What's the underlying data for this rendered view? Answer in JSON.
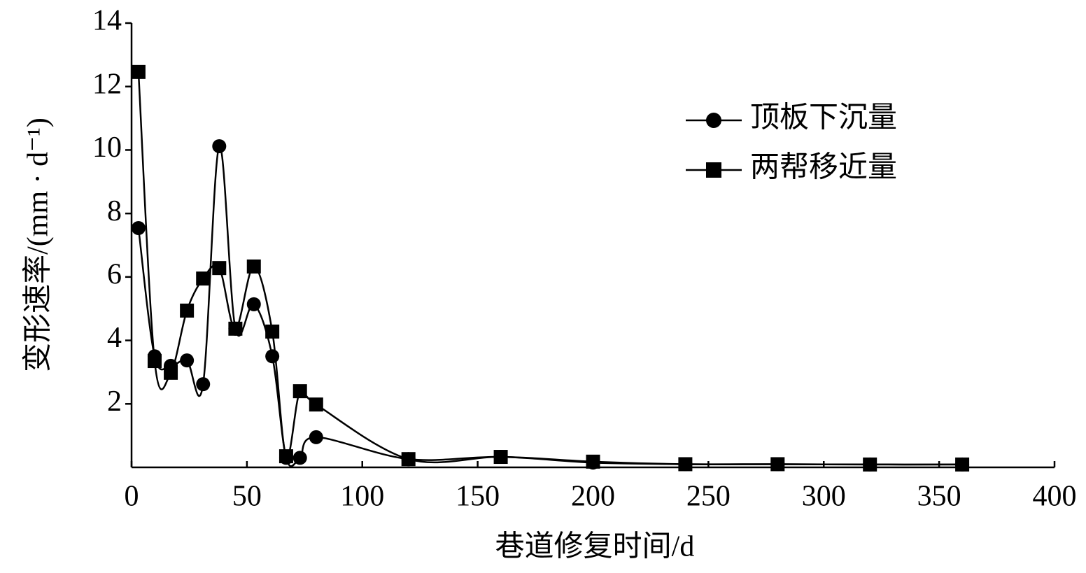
{
  "chart_data": {
    "type": "line",
    "xlabel": "巷道修复时间/d",
    "ylabel": "变形速率/(mm · d⁻¹)",
    "xlim": [
      0,
      400
    ],
    "xticks": [
      0,
      50,
      100,
      150,
      200,
      250,
      300,
      350,
      400
    ],
    "ylim": [
      0,
      14
    ],
    "yticks": [
      2,
      4,
      6,
      8,
      10,
      12,
      14
    ],
    "legend": "upper right",
    "series": [
      {
        "name": "顶板下沉量",
        "color": "#000000",
        "marker": "circle",
        "x": [
          3,
          10,
          17,
          24,
          31,
          38,
          45,
          53,
          61,
          67,
          73,
          80,
          120,
          160,
          200,
          240,
          280,
          320,
          360
        ],
        "values": [
          7.54,
          3.5,
          3.2,
          3.37,
          2.62,
          10.12,
          4.37,
          5.14,
          3.5,
          0.3,
          0.3,
          0.95,
          0.26,
          0.33,
          0.15,
          0.1,
          0.1,
          0.09,
          0.09
        ]
      },
      {
        "name": "两帮移近量",
        "color": "#000000",
        "marker": "square",
        "x": [
          3,
          10,
          17,
          24,
          31,
          38,
          45,
          53,
          61,
          67,
          73,
          80,
          120,
          160,
          200,
          240,
          280,
          320,
          360
        ],
        "values": [
          12.46,
          3.35,
          2.98,
          4.94,
          5.95,
          6.28,
          4.37,
          6.33,
          4.28,
          0.35,
          2.4,
          1.98,
          0.26,
          0.33,
          0.18,
          0.1,
          0.1,
          0.09,
          0.09
        ]
      }
    ]
  }
}
